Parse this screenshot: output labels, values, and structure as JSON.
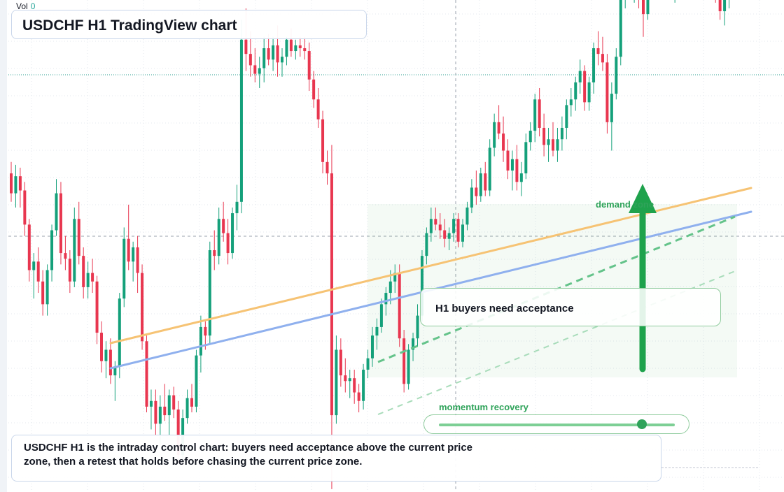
{
  "header": {
    "vol_label": "Vol",
    "vol_value": "0"
  },
  "title": "USDCHF H1 TradingView chart",
  "annotations": {
    "acceptance": "H1 buyers need acceptance",
    "momentum_label": "momentum recovery",
    "momentum_level": 0.86,
    "demand_label": "demand zone"
  },
  "note": "USDCHF H1 is the intraday control chart: buyers need acceptance above the current price zone, then a retest that holds before chasing the current price zone.",
  "colors": {
    "up": "#14a07a",
    "down": "#e8364f",
    "orange_line": "#f6c374",
    "blue_line": "#8fb0ee",
    "green": "#1ea24c"
  },
  "chart_data": {
    "type": "candlestick",
    "title": "USDCHF H1 TradingView chart",
    "candles": [
      [
        0.8802,
        0.8806,
        0.8792,
        0.8795
      ],
      [
        0.8795,
        0.8805,
        0.879,
        0.8801
      ],
      [
        0.8801,
        0.8804,
        0.879,
        0.8796
      ],
      [
        0.8796,
        0.8799,
        0.878,
        0.8784
      ],
      [
        0.8784,
        0.8786,
        0.8764,
        0.8768
      ],
      [
        0.8768,
        0.8774,
        0.8758,
        0.8771
      ],
      [
        0.8771,
        0.8776,
        0.876,
        0.8764
      ],
      [
        0.8764,
        0.8768,
        0.8752,
        0.8756
      ],
      [
        0.8756,
        0.877,
        0.8752,
        0.8768
      ],
      [
        0.8768,
        0.8784,
        0.8764,
        0.8782
      ],
      [
        0.8782,
        0.88,
        0.878,
        0.8795
      ],
      [
        0.8795,
        0.8799,
        0.877,
        0.8774
      ],
      [
        0.8774,
        0.878,
        0.8768,
        0.8772
      ],
      [
        0.8772,
        0.8775,
        0.876,
        0.8764
      ],
      [
        0.8764,
        0.879,
        0.8762,
        0.8786
      ],
      [
        0.8786,
        0.8792,
        0.877,
        0.8773
      ],
      [
        0.8773,
        0.8776,
        0.8758,
        0.8762
      ],
      [
        0.8762,
        0.8771,
        0.8758,
        0.8767
      ],
      [
        0.8767,
        0.8772,
        0.876,
        0.8764
      ],
      [
        0.8764,
        0.8766,
        0.8742,
        0.8746
      ],
      [
        0.8746,
        0.875,
        0.8732,
        0.8736
      ],
      [
        0.8736,
        0.8743,
        0.873,
        0.874
      ],
      [
        0.874,
        0.8744,
        0.8728,
        0.8731
      ],
      [
        0.8731,
        0.8736,
        0.8722,
        0.8734
      ],
      [
        0.8734,
        0.876,
        0.873,
        0.8758
      ],
      [
        0.8758,
        0.8783,
        0.8755,
        0.8779
      ],
      [
        0.8779,
        0.8791,
        0.8768,
        0.8771
      ],
      [
        0.8771,
        0.8778,
        0.8764,
        0.8776
      ],
      [
        0.8776,
        0.878,
        0.876,
        0.8767
      ],
      [
        0.8767,
        0.877,
        0.874,
        0.8743
      ],
      [
        0.8743,
        0.8745,
        0.8718,
        0.872
      ],
      [
        0.872,
        0.8726,
        0.8712,
        0.8722
      ],
      [
        0.8722,
        0.8726,
        0.871,
        0.8714
      ],
      [
        0.8714,
        0.8724,
        0.8707,
        0.872
      ],
      [
        0.872,
        0.8728,
        0.8715,
        0.8717
      ],
      [
        0.8717,
        0.8726,
        0.871,
        0.8724
      ],
      [
        0.8724,
        0.8727,
        0.8716,
        0.8719
      ],
      [
        0.8719,
        0.8722,
        0.87,
        0.8703
      ],
      [
        0.8703,
        0.8719,
        0.8701,
        0.8716
      ],
      [
        0.8716,
        0.8726,
        0.8714,
        0.8723
      ],
      [
        0.8723,
        0.8728,
        0.8718,
        0.872
      ],
      [
        0.872,
        0.874,
        0.8718,
        0.8738
      ],
      [
        0.8738,
        0.8752,
        0.8732,
        0.8748
      ],
      [
        0.8748,
        0.875,
        0.874,
        0.8745
      ],
      [
        0.8745,
        0.8778,
        0.8742,
        0.8775
      ],
      [
        0.8775,
        0.8782,
        0.8768,
        0.8773
      ],
      [
        0.8773,
        0.879,
        0.877,
        0.8786
      ],
      [
        0.8786,
        0.8792,
        0.8778,
        0.8781
      ],
      [
        0.8781,
        0.8786,
        0.877,
        0.8774
      ],
      [
        0.8774,
        0.879,
        0.8772,
        0.8788
      ],
      [
        0.8788,
        0.8798,
        0.8782,
        0.8792
      ],
      [
        0.8792,
        0.8856,
        0.8788,
        0.8849
      ],
      [
        0.8849,
        0.886,
        0.8838,
        0.8844
      ],
      [
        0.8844,
        0.8852,
        0.8836,
        0.884
      ],
      [
        0.884,
        0.8846,
        0.8834,
        0.8837
      ],
      [
        0.8837,
        0.8843,
        0.8832,
        0.8839
      ],
      [
        0.8839,
        0.885,
        0.8834,
        0.8846
      ],
      [
        0.8846,
        0.8851,
        0.884,
        0.8842
      ],
      [
        0.8842,
        0.885,
        0.8838,
        0.8847
      ],
      [
        0.8847,
        0.8854,
        0.8836,
        0.8841
      ],
      [
        0.8841,
        0.8846,
        0.8836,
        0.8843
      ],
      [
        0.8843,
        0.885,
        0.884,
        0.8849
      ],
      [
        0.8849,
        0.8853,
        0.8843,
        0.8845
      ],
      [
        0.8845,
        0.8849,
        0.8842,
        0.8847
      ],
      [
        0.8847,
        0.885,
        0.8843,
        0.8846
      ],
      [
        0.8846,
        0.885,
        0.8842,
        0.8845
      ],
      [
        0.8845,
        0.8848,
        0.8831,
        0.8835
      ],
      [
        0.8835,
        0.8838,
        0.8825,
        0.8828
      ],
      [
        0.8828,
        0.8832,
        0.8818,
        0.8821
      ],
      [
        0.8821,
        0.8824,
        0.8802,
        0.8806
      ],
      [
        0.8806,
        0.881,
        0.8798,
        0.8802
      ],
      [
        0.8802,
        0.8812,
        0.8691,
        0.8717
      ],
      [
        0.8717,
        0.8745,
        0.8714,
        0.874
      ],
      [
        0.874,
        0.8744,
        0.8727,
        0.8731
      ],
      [
        0.8731,
        0.8737,
        0.8725,
        0.8729
      ],
      [
        0.8729,
        0.8733,
        0.8723,
        0.873
      ],
      [
        0.873,
        0.8733,
        0.8721,
        0.8725
      ],
      [
        0.8725,
        0.8728,
        0.8718,
        0.8722
      ],
      [
        0.8722,
        0.8735,
        0.8719,
        0.8733
      ],
      [
        0.8733,
        0.874,
        0.873,
        0.8737
      ],
      [
        0.8737,
        0.8748,
        0.8734,
        0.8745
      ],
      [
        0.8745,
        0.8751,
        0.874,
        0.8748
      ],
      [
        0.8748,
        0.8758,
        0.8746,
        0.8756
      ],
      [
        0.8756,
        0.8762,
        0.8752,
        0.876
      ],
      [
        0.876,
        0.8768,
        0.8756,
        0.8764
      ],
      [
        0.8764,
        0.877,
        0.876,
        0.8767
      ],
      [
        0.8767,
        0.877,
        0.8741,
        0.8744
      ],
      [
        0.8744,
        0.8747,
        0.8725,
        0.8728
      ],
      [
        0.8728,
        0.8742,
        0.8726,
        0.874
      ],
      [
        0.874,
        0.8746,
        0.8736,
        0.8744
      ],
      [
        0.8744,
        0.8756,
        0.8741,
        0.8752
      ],
      [
        0.8752,
        0.8775,
        0.875,
        0.8773
      ],
      [
        0.8773,
        0.8783,
        0.877,
        0.8781
      ],
      [
        0.8781,
        0.879,
        0.8778,
        0.8786
      ],
      [
        0.8786,
        0.879,
        0.8782,
        0.8784
      ],
      [
        0.8784,
        0.8788,
        0.8779,
        0.8782
      ],
      [
        0.8782,
        0.8786,
        0.8776,
        0.8779
      ],
      [
        0.8779,
        0.8783,
        0.8775,
        0.8781
      ],
      [
        0.8781,
        0.8788,
        0.8778,
        0.8786
      ],
      [
        0.8786,
        0.8788,
        0.8776,
        0.8778
      ],
      [
        0.8778,
        0.8786,
        0.8776,
        0.8784
      ],
      [
        0.8784,
        0.8792,
        0.8782,
        0.879
      ],
      [
        0.879,
        0.88,
        0.8788,
        0.8797
      ],
      [
        0.8797,
        0.8803,
        0.8791,
        0.8794
      ],
      [
        0.8794,
        0.8804,
        0.8792,
        0.8802
      ],
      [
        0.8802,
        0.8806,
        0.8794,
        0.8796
      ],
      [
        0.8796,
        0.8814,
        0.8794,
        0.8811
      ],
      [
        0.8811,
        0.8823,
        0.8808,
        0.882
      ],
      [
        0.882,
        0.8826,
        0.8814,
        0.8816
      ],
      [
        0.8816,
        0.8822,
        0.8806,
        0.881
      ],
      [
        0.881,
        0.8814,
        0.88,
        0.8803
      ],
      [
        0.8803,
        0.881,
        0.8796,
        0.8807
      ],
      [
        0.8807,
        0.8812,
        0.8796,
        0.8799
      ],
      [
        0.8799,
        0.8806,
        0.8794,
        0.8802
      ],
      [
        0.8802,
        0.8816,
        0.88,
        0.8813
      ],
      [
        0.8813,
        0.882,
        0.881,
        0.8817
      ],
      [
        0.8817,
        0.883,
        0.8813,
        0.8828
      ],
      [
        0.8828,
        0.8832,
        0.8815,
        0.8818
      ],
      [
        0.8818,
        0.8823,
        0.8808,
        0.8812
      ],
      [
        0.8812,
        0.8818,
        0.8806,
        0.8814
      ],
      [
        0.8814,
        0.882,
        0.8808,
        0.881
      ],
      [
        0.881,
        0.8818,
        0.8806,
        0.8814
      ],
      [
        0.8814,
        0.8822,
        0.881,
        0.8818
      ],
      [
        0.8818,
        0.8828,
        0.8814,
        0.8826
      ],
      [
        0.8826,
        0.8832,
        0.8822,
        0.8828
      ],
      [
        0.8828,
        0.8836,
        0.8824,
        0.8834
      ],
      [
        0.8834,
        0.8842,
        0.883,
        0.8838
      ],
      [
        0.8838,
        0.884,
        0.8824,
        0.8827
      ],
      [
        0.8827,
        0.8836,
        0.8824,
        0.8834
      ],
      [
        0.8834,
        0.8848,
        0.883,
        0.8846
      ],
      [
        0.8846,
        0.8852,
        0.884,
        0.8844
      ],
      [
        0.8844,
        0.885,
        0.8838,
        0.8841
      ],
      [
        0.8841,
        0.8844,
        0.8816,
        0.882
      ],
      [
        0.882,
        0.8834,
        0.881,
        0.883
      ],
      [
        0.883,
        0.8846,
        0.8828,
        0.8843
      ],
      [
        0.8843,
        0.887,
        0.884,
        0.8866
      ],
      [
        0.8866,
        0.8876,
        0.886,
        0.8872
      ],
      [
        0.8872,
        0.8878,
        0.8864,
        0.8868
      ],
      [
        0.8868,
        0.8874,
        0.8862,
        0.8871
      ],
      [
        0.8871,
        0.8875,
        0.886,
        0.8863
      ],
      [
        0.8863,
        0.8869,
        0.885,
        0.8858
      ],
      [
        0.8858,
        0.887,
        0.8856,
        0.8866
      ],
      [
        0.8866,
        0.8878,
        0.8864,
        0.8876
      ],
      [
        0.8876,
        0.8884,
        0.8868,
        0.888
      ],
      [
        0.888,
        0.8882,
        0.887,
        0.8872
      ],
      [
        0.8872,
        0.8876,
        0.8866,
        0.8869
      ],
      [
        0.8869,
        0.8874,
        0.8864,
        0.8866
      ],
      [
        0.8866,
        0.888,
        0.8862,
        0.8878
      ],
      [
        0.8878,
        0.8886,
        0.8874,
        0.8884
      ],
      [
        0.8884,
        0.889,
        0.888,
        0.8886
      ],
      [
        0.8886,
        0.8894,
        0.888,
        0.8882
      ],
      [
        0.8882,
        0.8888,
        0.8868,
        0.8872
      ],
      [
        0.8872,
        0.8886,
        0.887,
        0.8884
      ],
      [
        0.8884,
        0.889,
        0.888,
        0.8886
      ],
      [
        0.8886,
        0.8888,
        0.8872,
        0.8875
      ],
      [
        0.8875,
        0.888,
        0.8866,
        0.887
      ],
      [
        0.887,
        0.8874,
        0.8862,
        0.8866
      ],
      [
        0.8866,
        0.887,
        0.8856,
        0.8859
      ],
      [
        0.8859,
        0.8868,
        0.8854,
        0.8864
      ],
      [
        0.8864,
        0.8872,
        0.886,
        0.8869
      ]
    ],
    "reference_lines": [
      "orange",
      "blue"
    ],
    "grid": true
  }
}
